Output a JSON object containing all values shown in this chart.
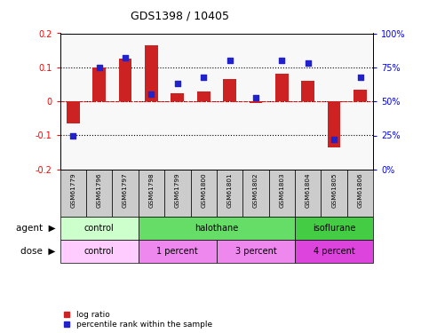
{
  "title": "GDS1398 / 10405",
  "samples": [
    "GSM61779",
    "GSM61796",
    "GSM61797",
    "GSM61798",
    "GSM61799",
    "GSM61800",
    "GSM61801",
    "GSM61802",
    "GSM61803",
    "GSM61804",
    "GSM61805",
    "GSM61806"
  ],
  "log_ratio": [
    -0.065,
    0.1,
    0.125,
    0.165,
    0.025,
    0.03,
    0.065,
    -0.005,
    0.08,
    0.06,
    -0.135,
    0.035
  ],
  "percentile_rank": [
    25,
    75,
    82,
    55,
    63,
    68,
    80,
    53,
    80,
    78,
    22,
    68
  ],
  "bar_color": "#cc2222",
  "dot_color": "#2222cc",
  "ylim_left": [
    -0.2,
    0.2
  ],
  "ylim_right": [
    0,
    100
  ],
  "yticks_left": [
    -0.2,
    -0.1,
    0.0,
    0.1,
    0.2
  ],
  "yticks_right": [
    0,
    25,
    50,
    75,
    100
  ],
  "agent_groups": [
    {
      "label": "control",
      "start": 0,
      "end": 3,
      "color": "#ccffcc"
    },
    {
      "label": "halothane",
      "start": 3,
      "end": 9,
      "color": "#66dd66"
    },
    {
      "label": "isoflurane",
      "start": 9,
      "end": 12,
      "color": "#44cc44"
    }
  ],
  "dose_groups": [
    {
      "label": "control",
      "start": 0,
      "end": 3,
      "color": "#ffccff"
    },
    {
      "label": "1 percent",
      "start": 3,
      "end": 6,
      "color": "#ee88ee"
    },
    {
      "label": "3 percent",
      "start": 6,
      "end": 9,
      "color": "#ee88ee"
    },
    {
      "label": "4 percent",
      "start": 9,
      "end": 12,
      "color": "#dd44dd"
    }
  ],
  "legend_log_ratio": "log ratio",
  "legend_percentile": "percentile rank within the sample",
  "bar_width": 0.5,
  "sample_bg": "#cccccc",
  "agent_label": "agent",
  "dose_label": "dose"
}
